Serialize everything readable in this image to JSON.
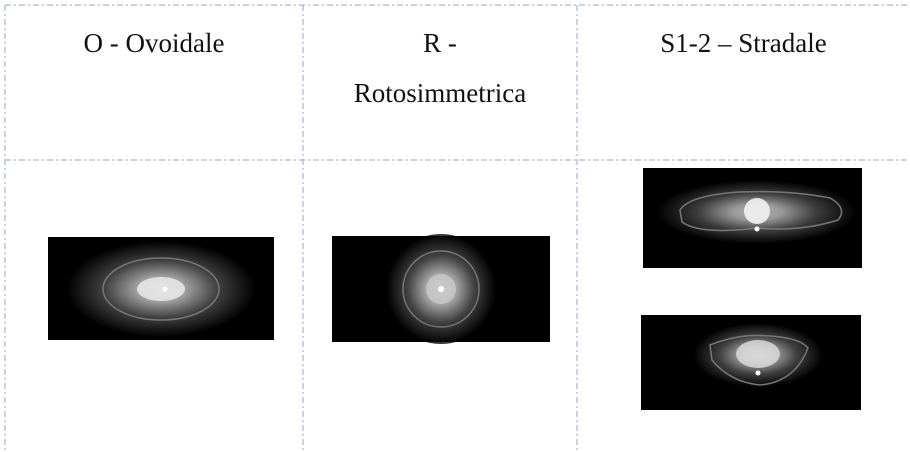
{
  "table": {
    "headers": [
      "O - Ovoidale",
      "R - Rotosimmetrica",
      "S1-2 – Stradale"
    ]
  }
}
